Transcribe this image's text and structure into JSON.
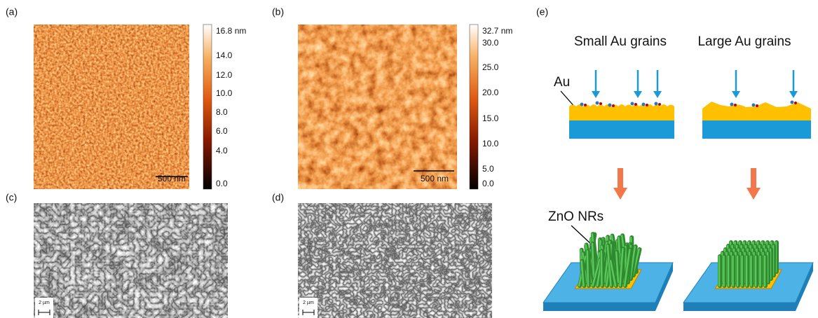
{
  "panels": {
    "a": {
      "label": "(a)",
      "colorbar": [
        "16.8 nm",
        "14.0",
        "12.0",
        "10.0",
        "8.0",
        "6.0",
        "4.0",
        "0.0"
      ],
      "scale_bar": "500 nm"
    },
    "b": {
      "label": "(b)",
      "colorbar": [
        "32.7 nm",
        "30.0",
        "25.0",
        "20.0",
        "15.0",
        "10.0",
        "5.0",
        "0.0"
      ],
      "scale_bar": "500 nm"
    },
    "c": {
      "label": "(c)",
      "scale_bar": "2 µm"
    },
    "d": {
      "label": "(d)",
      "scale_bar": "2 µm"
    },
    "e": {
      "label": "(e)",
      "columns": [
        "Small Au grains",
        "Large Au grains"
      ],
      "au_label": "Au",
      "zno_label": "ZnO NRs"
    }
  }
}
